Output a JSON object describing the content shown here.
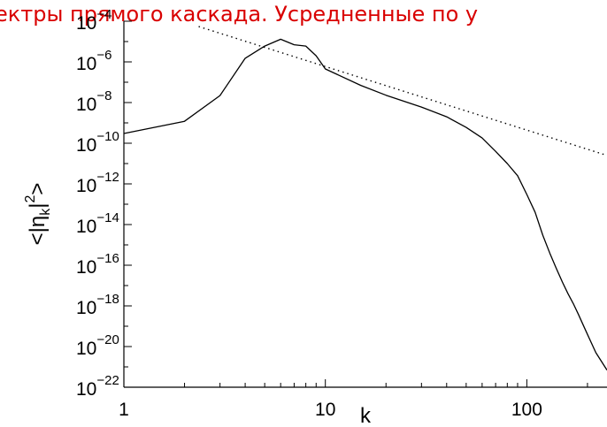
{
  "chart_data": {
    "type": "line",
    "title": "ектры прямого каскада. Усредненные по у",
    "xlabel": "k",
    "ylabel": {
      "open": "<|η",
      "sub": "k",
      "close": "|",
      "sup": "2",
      "end": ">"
    },
    "xscale": "log",
    "yscale": "log",
    "xlim": [
      1,
      250
    ],
    "ylim": [
      1e-22,
      0.0001
    ],
    "grid": false,
    "xticks": [
      {
        "value": 1,
        "label": "1"
      },
      {
        "value": 10,
        "label": "10"
      },
      {
        "value": 100,
        "label": "100"
      }
    ],
    "yticks": [
      {
        "value": 0.0001,
        "base": "10",
        "exp": "−4"
      },
      {
        "value": 1e-06,
        "base": "10",
        "exp": "−6"
      },
      {
        "value": 1e-08,
        "base": "10",
        "exp": "−8"
      },
      {
        "value": 1e-10,
        "base": "10",
        "exp": "−10"
      },
      {
        "value": 1e-12,
        "base": "10",
        "exp": "−12"
      },
      {
        "value": 1e-14,
        "base": "10",
        "exp": "−14"
      },
      {
        "value": 1e-16,
        "base": "10",
        "exp": "−16"
      },
      {
        "value": 1e-18,
        "base": "10",
        "exp": "−18"
      },
      {
        "value": 1e-20,
        "base": "10",
        "exp": "−20"
      },
      {
        "value": 1e-22,
        "base": "10",
        "exp": "−22"
      }
    ],
    "series": [
      {
        "style": "solid",
        "color": "#000000",
        "x": [
          1,
          2,
          3,
          4,
          5,
          6,
          7,
          8,
          9,
          10,
          15,
          20,
          30,
          40,
          50,
          60,
          70,
          80,
          90,
          100,
          110,
          120,
          130,
          140,
          150,
          160,
          170,
          180,
          190,
          200,
          220,
          250
        ],
        "y": [
          3e-10,
          1.2e-09,
          2.2e-08,
          1.5e-06,
          6e-06,
          1.3e-05,
          7e-06,
          6e-06,
          2e-06,
          4.5e-07,
          7e-08,
          2.3e-08,
          6e-09,
          2e-09,
          6e-10,
          1.8e-10,
          4e-11,
          1e-11,
          2.5e-12,
          3e-13,
          4e-14,
          3e-15,
          4e-16,
          7e-17,
          1.5e-17,
          4e-18,
          1.3e-18,
          4e-19,
          1.2e-19,
          4e-20,
          5e-21,
          7e-22
        ]
      },
      {
        "style": "dotted",
        "color": "#000000",
        "x": [
          2.35,
          250
        ],
        "y": [
          5.5e-05,
          2.5e-11
        ]
      }
    ]
  }
}
